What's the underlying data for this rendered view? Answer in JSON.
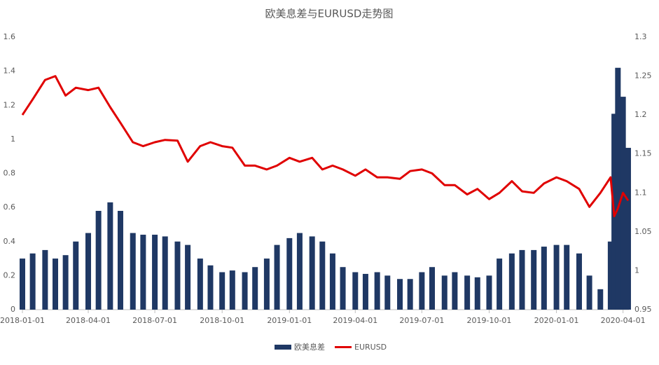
{
  "chart_data": {
    "type": "bar_line",
    "title": "欧美息差与EURUSD走势图",
    "x": [
      "2018-01-01",
      "2018-01-15",
      "2018-02-01",
      "2018-02-15",
      "2018-03-01",
      "2018-03-15",
      "2018-04-01",
      "2018-04-15",
      "2018-05-01",
      "2018-05-15",
      "2018-06-01",
      "2018-06-15",
      "2018-07-01",
      "2018-07-15",
      "2018-08-01",
      "2018-08-15",
      "2018-09-01",
      "2018-09-15",
      "2018-10-01",
      "2018-10-15",
      "2018-11-01",
      "2018-11-15",
      "2018-12-01",
      "2018-12-15",
      "2019-01-01",
      "2019-01-15",
      "2019-02-01",
      "2019-02-15",
      "2019-03-01",
      "2019-03-15",
      "2019-04-01",
      "2019-04-15",
      "2019-05-01",
      "2019-05-15",
      "2019-06-01",
      "2019-06-15",
      "2019-07-01",
      "2019-07-15",
      "2019-08-01",
      "2019-08-15",
      "2019-09-01",
      "2019-09-15",
      "2019-10-01",
      "2019-10-15",
      "2019-11-01",
      "2019-11-15",
      "2019-12-01",
      "2019-12-15",
      "2020-01-01",
      "2020-01-15",
      "2020-02-01",
      "2020-02-15",
      "2020-03-01",
      "2020-03-15",
      "2020-03-20",
      "2020-03-25",
      "2020-04-01",
      "2020-04-08"
    ],
    "series": [
      {
        "name": "欧美息差",
        "color": "#1f3864",
        "kind": "bar",
        "values": [
          0.3,
          0.33,
          0.35,
          0.3,
          0.32,
          0.4,
          0.45,
          0.58,
          0.63,
          0.58,
          0.45,
          0.44,
          0.44,
          0.43,
          0.4,
          0.38,
          0.3,
          0.26,
          0.22,
          0.23,
          0.22,
          0.25,
          0.3,
          0.38,
          0.42,
          0.45,
          0.43,
          0.4,
          0.33,
          0.25,
          0.22,
          0.21,
          0.22,
          0.2,
          0.18,
          0.18,
          0.22,
          0.25,
          0.2,
          0.22,
          0.2,
          0.19,
          0.2,
          0.3,
          0.33,
          0.35,
          0.35,
          0.37,
          0.38,
          0.38,
          0.33,
          0.2,
          0.12,
          0.4,
          1.15,
          1.42,
          1.25,
          0.95
        ]
      },
      {
        "name": "EURUSD",
        "color": "#e00000",
        "kind": "line",
        "axis": "y2",
        "values": [
          1.2,
          1.22,
          1.245,
          1.25,
          1.225,
          1.235,
          1.232,
          1.235,
          1.21,
          1.19,
          1.165,
          1.16,
          1.165,
          1.168,
          1.167,
          1.14,
          1.16,
          1.165,
          1.16,
          1.158,
          1.135,
          1.135,
          1.13,
          1.135,
          1.145,
          1.14,
          1.145,
          1.13,
          1.135,
          1.13,
          1.122,
          1.13,
          1.12,
          1.12,
          1.118,
          1.128,
          1.13,
          1.125,
          1.11,
          1.11,
          1.098,
          1.105,
          1.092,
          1.1,
          1.115,
          1.102,
          1.1,
          1.112,
          1.12,
          1.115,
          1.105,
          1.082,
          1.1,
          1.12,
          1.07,
          1.08,
          1.1,
          1.09
        ]
      }
    ],
    "xlim": [
      "2018-01-01",
      "2020-04-09"
    ],
    "xticks": [
      "2018-01-01",
      "2018-04-01",
      "2018-07-01",
      "2018-10-01",
      "2019-01-01",
      "2019-04-01",
      "2019-07-01",
      "2019-10-01",
      "2020-01-01",
      "2020-04-01"
    ],
    "ylim": [
      0,
      1.6
    ],
    "yticks": [
      0,
      0.2,
      0.4,
      0.6,
      0.8,
      1,
      1.2,
      1.4,
      1.6
    ],
    "y2lim": [
      0.95,
      1.3
    ],
    "y2ticks": [
      0.95,
      1,
      1.05,
      1.1,
      1.15,
      1.2,
      1.25,
      1.3
    ],
    "legend": "bottom"
  }
}
